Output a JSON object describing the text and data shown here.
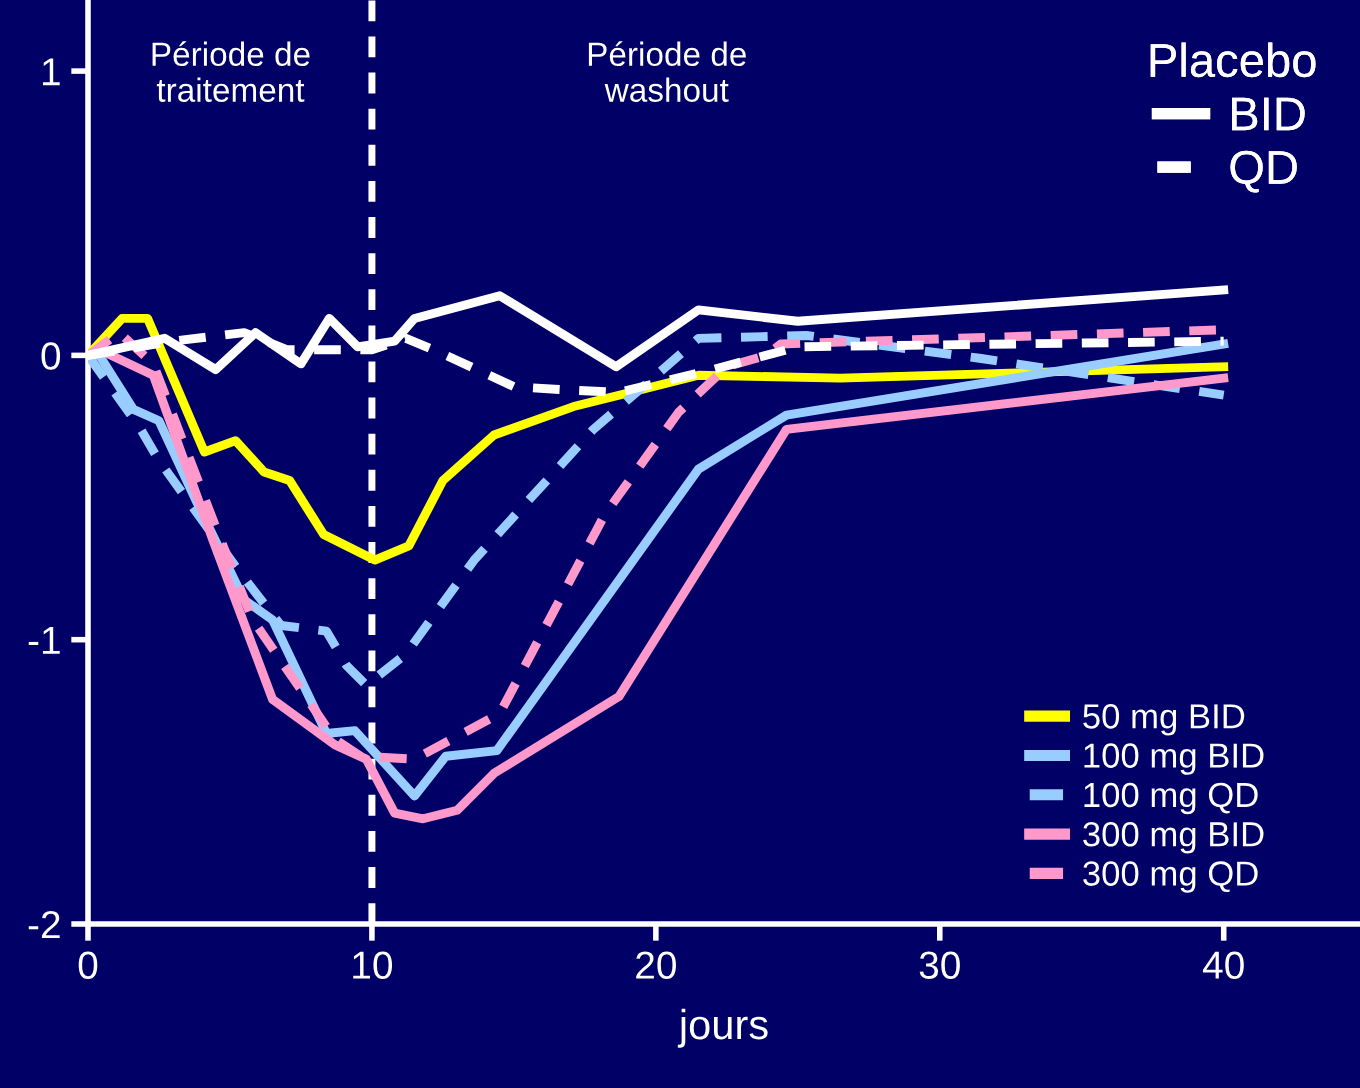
{
  "chart_data": {
    "type": "line",
    "xlabel": "jours",
    "xlim": [
      0,
      44.8
    ],
    "ylim": [
      -2,
      1.25
    ],
    "xticks": [
      0,
      10,
      20,
      30,
      40
    ],
    "yticks": [
      -2,
      -1,
      0,
      1
    ],
    "grid": false,
    "legend": "right",
    "legend_title": "Placebo",
    "marker": "none",
    "ref_lines": [
      {
        "axis": "x",
        "value": 10,
        "color": "#ffffff",
        "line_style": "dashed"
      }
    ],
    "annotations": [
      "Période de\ntraitement",
      "Période de\nwashout"
    ],
    "series": [
      {
        "name": "50 mg BID",
        "color": "#ffff00",
        "line_style": "solid",
        "x": [
          0,
          1.2,
          2.1,
          4.1,
          5.2,
          6.2,
          7.1,
          8.3,
          10.1,
          11.3,
          12.5,
          14.3,
          17.1,
          18.7,
          21.5,
          26.5,
          40
        ],
        "values": [
          0,
          0.13,
          0.13,
          -0.34,
          -0.3,
          -0.41,
          -0.44,
          -0.63,
          -0.72,
          -0.67,
          -0.44,
          -0.28,
          -0.18,
          -0.14,
          -0.07,
          -0.08,
          -0.04
        ]
      },
      {
        "name": "100 mg BID",
        "color": "#99ccff",
        "line_style": "solid",
        "x": [
          0,
          0.4,
          1.6,
          2.5,
          3.8,
          5.5,
          6.5,
          8.4,
          9.4,
          11.5,
          12.6,
          14.4,
          21.5,
          24.6,
          40
        ],
        "values": [
          0,
          0,
          -0.19,
          -0.23,
          -0.51,
          -0.86,
          -0.93,
          -1.33,
          -1.32,
          -1.55,
          -1.41,
          -1.39,
          -0.4,
          -0.21,
          0.04
        ]
      },
      {
        "name": "100 mg QD",
        "color": "#99ccff",
        "line_style": "dashed",
        "x": [
          0,
          1.8,
          2.5,
          5.4,
          6.8,
          8.4,
          9.1,
          9.8,
          11.2,
          13.6,
          17.8,
          19.9,
          21.5,
          25.3,
          31.4,
          40
        ],
        "values": [
          0,
          -0.25,
          -0.37,
          -0.77,
          -0.95,
          -0.97,
          -1.09,
          -1.16,
          -1.05,
          -0.72,
          -0.26,
          -0.08,
          0.06,
          0.07,
          -0.01,
          -0.14
        ]
      },
      {
        "name": "300 mg BID",
        "color": "#ff99cc",
        "line_style": "solid",
        "x": [
          0,
          0.4,
          2.3,
          4.4,
          6.5,
          8.7,
          9.8,
          10.8,
          11.8,
          13,
          14.3,
          18.7,
          24.6,
          40
        ],
        "values": [
          0,
          0.02,
          -0.07,
          -0.65,
          -1.21,
          -1.37,
          -1.42,
          -1.61,
          -1.63,
          -1.6,
          -1.47,
          -1.2,
          -0.26,
          -0.08
        ]
      },
      {
        "name": "300 mg QD",
        "color": "#ff99cc",
        "line_style": "dashed",
        "x": [
          0,
          1.1,
          2.3,
          4.6,
          5.8,
          8.7,
          9.6,
          11.5,
          14.5,
          18.2,
          20.8,
          22.5,
          23.9,
          24.4,
          40
        ],
        "values": [
          0,
          0.08,
          -0.03,
          -0.63,
          -0.93,
          -1.35,
          -1.41,
          -1.42,
          -1.26,
          -0.56,
          -0.2,
          -0.04,
          0,
          0.04,
          0.09
        ]
      },
      {
        "name": "BID",
        "color": "#ffffff",
        "line_style": "solid",
        "x": [
          0,
          2.7,
          4.5,
          5.9,
          7.5,
          8.5,
          9.5,
          10.8,
          11.5,
          14.5,
          18.6,
          21.5,
          25,
          40
        ],
        "values": [
          0,
          0.06,
          -0.05,
          0.08,
          -0.03,
          0.13,
          0.03,
          0.05,
          0.13,
          0.21,
          -0.04,
          0.16,
          0.12,
          0.23
        ]
      },
      {
        "name": "QD",
        "color": "#ffffff",
        "line_style": "dashed",
        "x": [
          0,
          3,
          5.5,
          7,
          10,
          11.2,
          12.4,
          15,
          16.6,
          18.7,
          22,
          25,
          40
        ],
        "values": [
          0,
          0.05,
          0.08,
          0.02,
          0.02,
          0.06,
          0.01,
          -0.11,
          -0.12,
          -0.13,
          -0.05,
          0.03,
          0.05
        ]
      }
    ]
  }
}
